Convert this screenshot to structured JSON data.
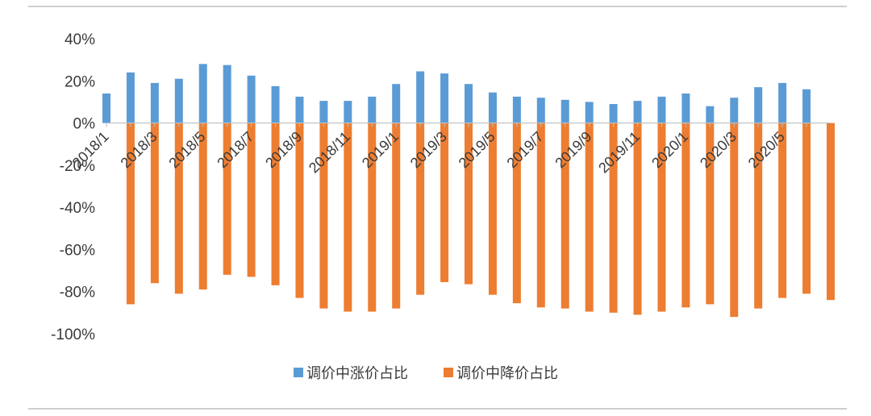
{
  "chart_data": {
    "type": "bar",
    "categories": [
      "2018/1",
      "2018/2",
      "2018/3",
      "2018/4",
      "2018/5",
      "2018/6",
      "2018/7",
      "2018/8",
      "2018/9",
      "2018/10",
      "2018/11",
      "2018/12",
      "2019/1",
      "2019/2",
      "2019/3",
      "2019/4",
      "2019/5",
      "2019/6",
      "2019/7",
      "2019/8",
      "2019/9",
      "2019/10",
      "2019/11",
      "2019/12",
      "2020/1",
      "2020/2",
      "2020/3",
      "2020/4",
      "2020/5",
      "2020/6"
    ],
    "tick_labels": [
      "2018/1",
      "2018/3",
      "2018/5",
      "2018/7",
      "2018/9",
      "2018/11",
      "2019/1",
      "2019/3",
      "2019/5",
      "2019/7",
      "2019/9",
      "2019/11",
      "2020/1",
      "2020/3",
      "2020/5"
    ],
    "series": [
      {
        "name": "调价中涨价占比",
        "color": "#5B9BD5",
        "values": [
          14,
          24,
          19,
          21,
          28,
          27.5,
          22.5,
          17.5,
          12.5,
          10.5,
          10.5,
          12.5,
          18.5,
          24.5,
          23.5,
          18.5,
          14.5,
          12.5,
          12,
          11,
          10,
          9,
          10.5,
          12.5,
          14,
          8,
          12,
          17,
          19,
          16
        ]
      },
      {
        "name": "调价中降价占比",
        "color": "#ED7D31",
        "values": [
          -86,
          -76,
          -81,
          -79,
          -72,
          -73,
          -77,
          -83,
          -88,
          -89.5,
          -89.5,
          -88,
          -81.5,
          -75.5,
          -76.5,
          -81.5,
          -85.5,
          -87.5,
          -88,
          -89.5,
          -90,
          -91,
          -89.5,
          -87.5,
          -86,
          -92,
          -88,
          -83,
          -81,
          -84
        ]
      }
    ],
    "y_tick_values": [
      40,
      20,
      0,
      -20,
      -40,
      -60,
      -80,
      -100
    ],
    "y_tick_labels": [
      "40%",
      "20%",
      "0%",
      "-20%",
      "-40%",
      "-60%",
      "-80%",
      "-100%"
    ],
    "ylim": [
      -100,
      40
    ],
    "title": "",
    "xlabel": "",
    "ylabel": "",
    "grid": false,
    "legend_position": "bottom"
  }
}
